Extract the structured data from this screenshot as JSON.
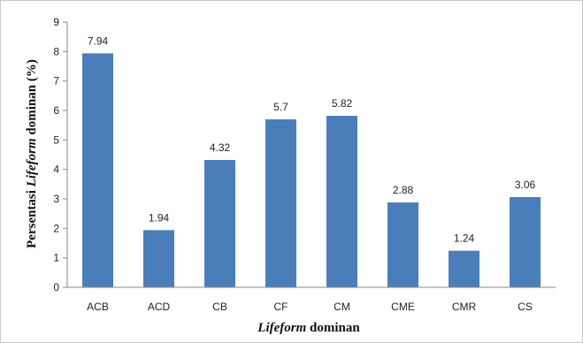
{
  "chart_data": {
    "type": "bar",
    "categories": [
      "ACB",
      "ACD",
      "CB",
      "CF",
      "CM",
      "CME",
      "CMR",
      "CS"
    ],
    "values": [
      7.94,
      1.94,
      4.32,
      5.7,
      5.82,
      2.88,
      1.24,
      3.06
    ],
    "data_labels": [
      "7.94",
      "1.94",
      "4.32",
      "5.7",
      "5.82",
      "2.88",
      "1.24",
      "3.06"
    ],
    "ylim": [
      0,
      9
    ],
    "yticks": [
      0,
      1,
      2,
      3,
      4,
      5,
      6,
      7,
      8,
      9
    ],
    "xlabel": {
      "italic_part": "Lifeform",
      "rest": " dominan"
    },
    "ylabel": {
      "prefix": "Persentasi ",
      "italic_part": "Lifeform",
      "suffix": " dominan (%)"
    },
    "bar_color": "#4a7ebb",
    "legend": "none",
    "grid": false
  }
}
